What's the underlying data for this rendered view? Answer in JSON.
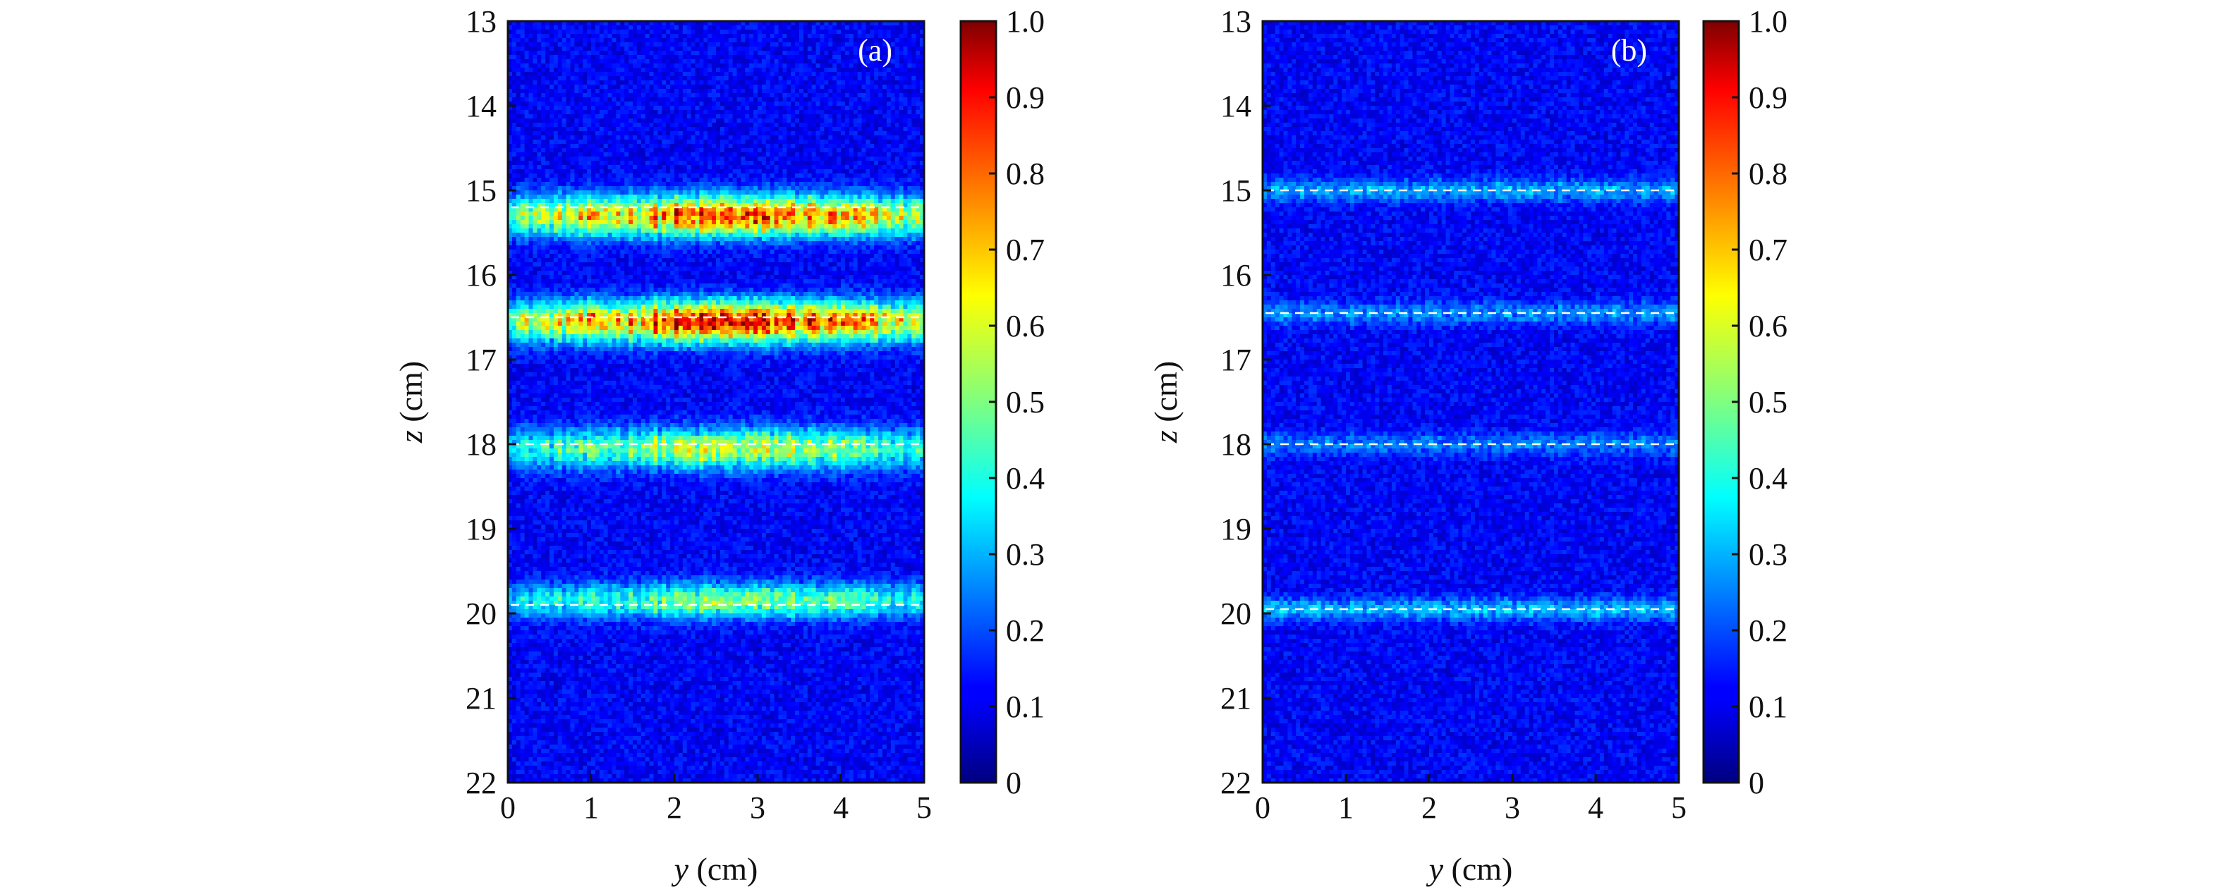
{
  "chart_data": [
    {
      "type": "heatmap",
      "panel_label": "(a)",
      "xlabel_var": "y",
      "xlabel_unit": " (cm)",
      "ylabel_var": "z",
      "ylabel_unit": " (cm)",
      "xlim": [
        0,
        5
      ],
      "ylim": [
        13,
        22
      ],
      "y_inverted": true,
      "x_ticks": [
        "0",
        "1",
        "2",
        "3",
        "4",
        "5"
      ],
      "y_ticks": [
        "13",
        "14",
        "15",
        "16",
        "17",
        "18",
        "19",
        "20",
        "21",
        "22"
      ],
      "colorbar": {
        "range": [
          0,
          1
        ],
        "ticks": [
          "0",
          "0.1",
          "0.2",
          "0.3",
          "0.4",
          "0.5",
          "0.6",
          "0.7",
          "0.8",
          "0.9",
          "1.0"
        ],
        "colormap": "jet"
      },
      "background_level": 0.12,
      "bands": [
        {
          "z": 15.3,
          "peak": 0.78,
          "width": 0.35,
          "dashed_line_z": 15.2
        },
        {
          "z": 16.55,
          "peak": 0.85,
          "width": 0.35,
          "dashed_line_z": 16.5
        },
        {
          "z": 18.05,
          "peak": 0.55,
          "width": 0.35,
          "dashed_line_z": 18.0
        },
        {
          "z": 19.85,
          "peak": 0.5,
          "width": 0.3,
          "dashed_line_z": 19.9
        }
      ]
    },
    {
      "type": "heatmap",
      "panel_label": "(b)",
      "xlabel_var": "y",
      "xlabel_unit": " (cm)",
      "ylabel_var": "z",
      "ylabel_unit": " (cm)",
      "xlim": [
        0,
        5
      ],
      "ylim": [
        13,
        22
      ],
      "y_inverted": true,
      "x_ticks": [
        "0",
        "1",
        "2",
        "3",
        "4",
        "5"
      ],
      "y_ticks": [
        "13",
        "14",
        "15",
        "16",
        "17",
        "18",
        "19",
        "20",
        "21",
        "22"
      ],
      "colorbar": {
        "range": [
          0,
          1
        ],
        "ticks": [
          "0",
          "0.1",
          "0.2",
          "0.3",
          "0.4",
          "0.5",
          "0.6",
          "0.7",
          "0.8",
          "0.9",
          "1.0"
        ],
        "colormap": "jet"
      },
      "background_level": 0.12,
      "bands": [
        {
          "z": 15.0,
          "peak": 0.28,
          "width": 0.2,
          "dashed_line_z": 15.0
        },
        {
          "z": 16.45,
          "peak": 0.26,
          "width": 0.2,
          "dashed_line_z": 16.45
        },
        {
          "z": 18.0,
          "peak": 0.24,
          "width": 0.2,
          "dashed_line_z": 18.0
        },
        {
          "z": 19.95,
          "peak": 0.3,
          "width": 0.2,
          "dashed_line_z": 19.95
        }
      ]
    }
  ]
}
